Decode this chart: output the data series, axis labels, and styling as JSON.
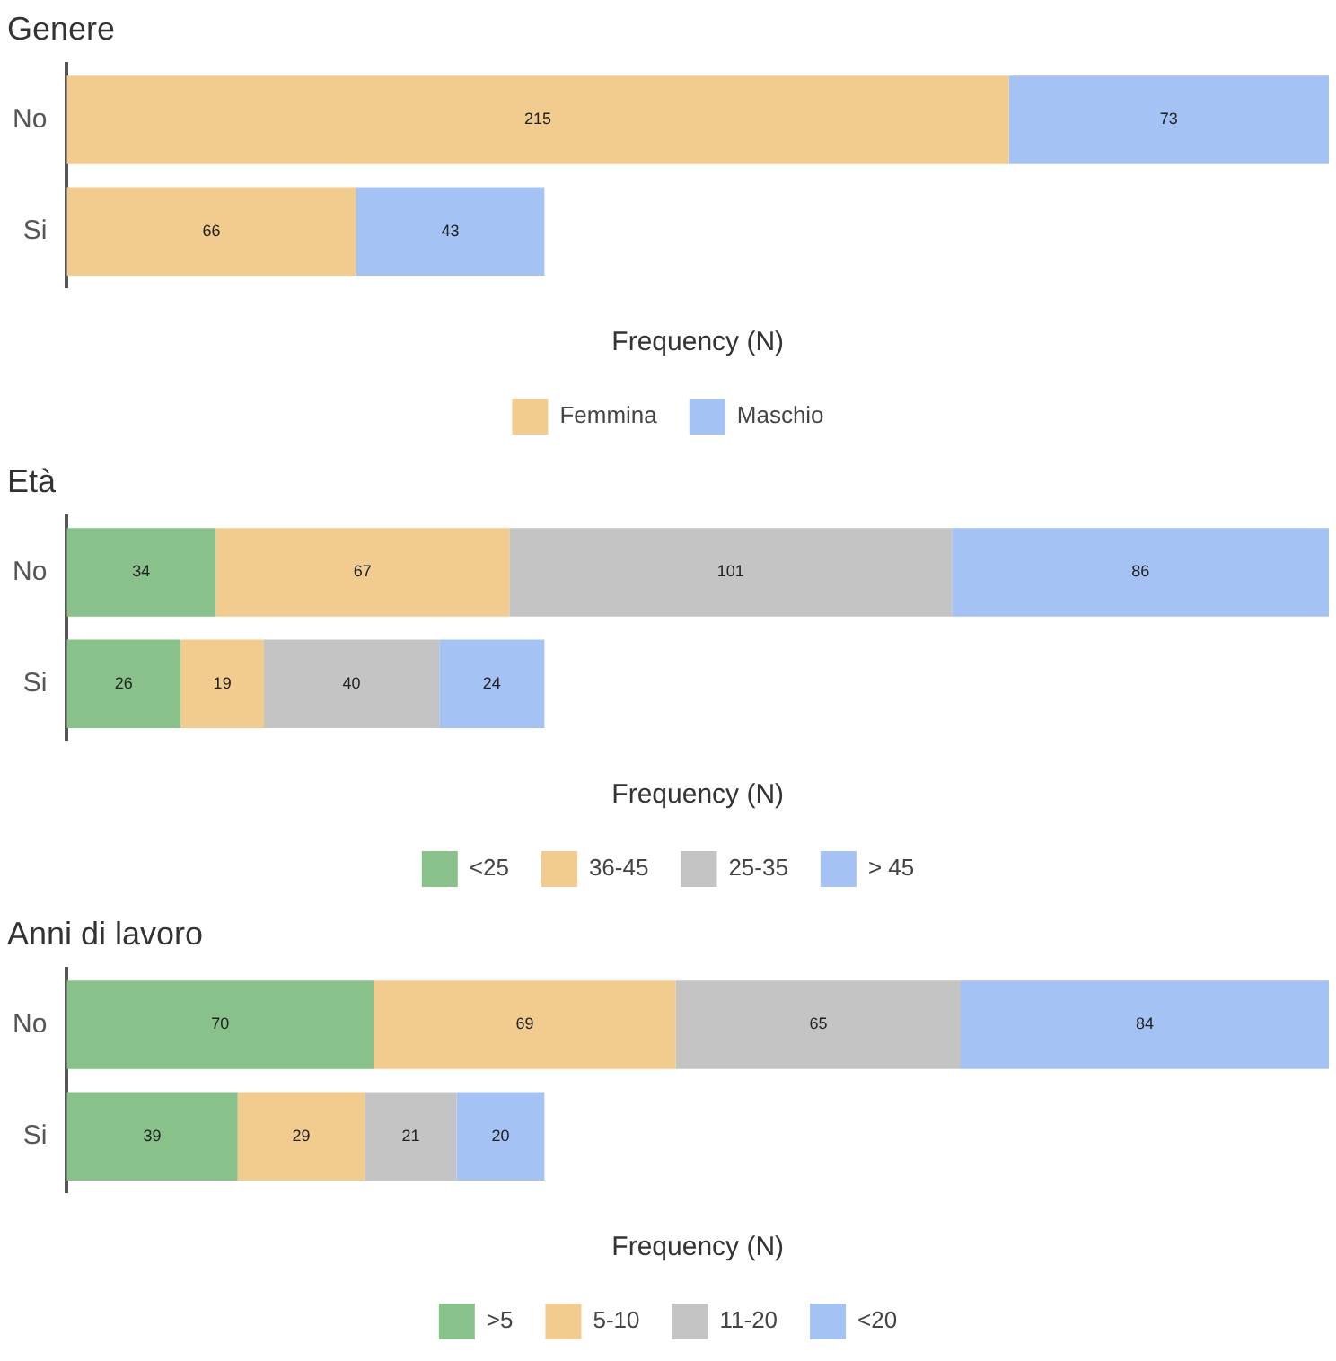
{
  "chart_data": [
    {
      "type": "bar",
      "title": "Genere",
      "categories": [
        "No",
        "Si"
      ],
      "orientation": "horizontal",
      "stacked": true,
      "data_labels": true,
      "xlabel": "Frequency (N)",
      "legend": "bottom",
      "tick_labels": "y",
      "grid": false,
      "series": [
        {
          "name": "Femmina",
          "color": "#f2cc8f",
          "values": [
            215,
            66
          ]
        },
        {
          "name": "Maschio",
          "color": "#a4c2f4",
          "values": [
            73,
            43
          ]
        }
      ]
    },
    {
      "type": "bar",
      "title": "Età",
      "categories": [
        "No",
        "Si"
      ],
      "orientation": "horizontal",
      "stacked": true,
      "data_labels": true,
      "xlabel": "Frequency (N)",
      "legend": "bottom",
      "tick_labels": "y",
      "grid": false,
      "series": [
        {
          "name": "<25",
          "color": "#88c28a",
          "values": [
            34,
            26
          ]
        },
        {
          "name": "36-45",
          "color": "#f2cc8f",
          "values": [
            67,
            19
          ]
        },
        {
          "name": "25-35",
          "color": "#c4c4c4",
          "values": [
            101,
            40
          ]
        },
        {
          "name": "> 45",
          "color": "#a4c2f4",
          "values": [
            86,
            24
          ]
        }
      ]
    },
    {
      "type": "bar",
      "title": "Anni di lavoro",
      "categories": [
        "No",
        "Si"
      ],
      "orientation": "horizontal",
      "stacked": true,
      "data_labels": true,
      "xlabel": "Frequency (N)",
      "legend": "bottom",
      "tick_labels": "y",
      "grid": false,
      "series": [
        {
          "name": ">5",
          "color": "#88c28a",
          "values": [
            70,
            39
          ]
        },
        {
          "name": "5-10",
          "color": "#f2cc8f",
          "values": [
            69,
            29
          ]
        },
        {
          "name": "11-20",
          "color": "#c4c4c4",
          "values": [
            65,
            21
          ]
        },
        {
          "name": "<20",
          "color": "#a4c2f4",
          "values": [
            84,
            20
          ]
        }
      ]
    }
  ]
}
